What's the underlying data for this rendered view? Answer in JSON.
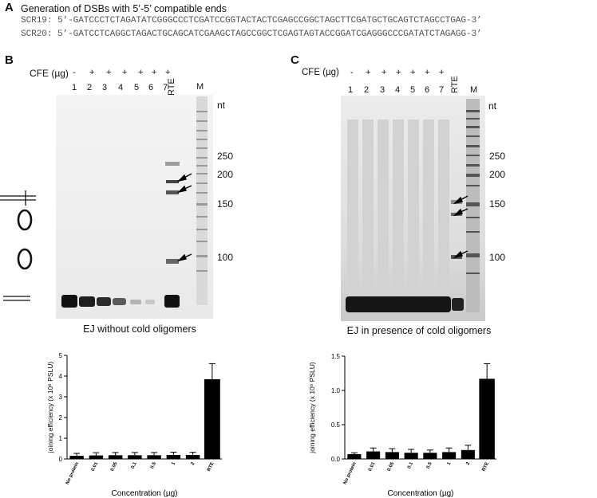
{
  "panel_a": {
    "letter": "A",
    "title": "Generation of DSBs with 5’-5’ compatible ends",
    "seq1": "SCR19: 5’-GATCCCTCTAGATATCGGGCCCTCGATCCGGTACTACTCGAGCCGGCTAGCTTCGATGCTGCAGTCTAGCCTGAG-3’",
    "seq2": "SCR20: 5’-GATCCTCAGGCTAGACTGCAGCATCGAAGCTAGCCGGCTCGAGTAGTACCGGATCGAGGGCCCGATATCTAGAGG-3’"
  },
  "panel_b": {
    "letter": "B",
    "cfe_label": "CFE (µg)",
    "cfe_marks": [
      "-",
      "+",
      "+",
      "+",
      "+",
      "+",
      "+"
    ],
    "lanes": [
      "1",
      "2",
      "3",
      "4",
      "5",
      "6",
      "7"
    ],
    "rte_label": "RTE",
    "m_label": "M",
    "nt_label": "nt",
    "size_markers": [
      "250",
      "200",
      "150",
      "100"
    ],
    "caption": "EJ without cold oligomers"
  },
  "panel_c": {
    "letter": "C",
    "cfe_label": "CFE (µg)",
    "cfe_marks": [
      "-",
      "+",
      "+",
      "+",
      "+",
      "+",
      "+"
    ],
    "lanes": [
      "1",
      "2",
      "3",
      "4",
      "5",
      "6",
      "7"
    ],
    "rte_label": "RTE",
    "m_label": "M",
    "nt_label": "nt",
    "size_markers": [
      "250",
      "200",
      "150",
      "100"
    ],
    "caption": "EJ in presence of cold oligomers"
  },
  "chart_data": [
    {
      "type": "bar",
      "ylabel": "joining efficiency (x 10⁶ PSLU)",
      "xlabel": "Concentration (µg)",
      "categories": [
        "No protein",
        "0.01",
        "0.05",
        "0.1",
        "0.5",
        "1",
        "2",
        "RTE"
      ],
      "values": [
        0.15,
        0.17,
        0.18,
        0.18,
        0.18,
        0.19,
        0.19,
        3.85
      ],
      "errors": [
        0.12,
        0.13,
        0.13,
        0.13,
        0.13,
        0.14,
        0.13,
        0.75
      ],
      "yticks": [
        "0",
        "1",
        "2",
        "3",
        "4",
        "5"
      ],
      "ylim": [
        0,
        5
      ],
      "bar_color": "#000000"
    },
    {
      "type": "bar",
      "ylabel": "joining efficiency (x 10⁶ PSLU)",
      "xlabel": "Concentration (µg)",
      "categories": [
        "No protein",
        "0.01",
        "0.05",
        "0.1",
        "0.5",
        "1",
        "2",
        "RTE"
      ],
      "values": [
        0.07,
        0.11,
        0.1,
        0.09,
        0.09,
        0.1,
        0.13,
        1.17
      ],
      "errors": [
        0.02,
        0.05,
        0.05,
        0.05,
        0.04,
        0.06,
        0.07,
        0.22
      ],
      "yticks": [
        "0.0",
        "0.5",
        "1.0",
        "1.5"
      ],
      "ylim": [
        0,
        1.5
      ],
      "bar_color": "#000000"
    }
  ]
}
